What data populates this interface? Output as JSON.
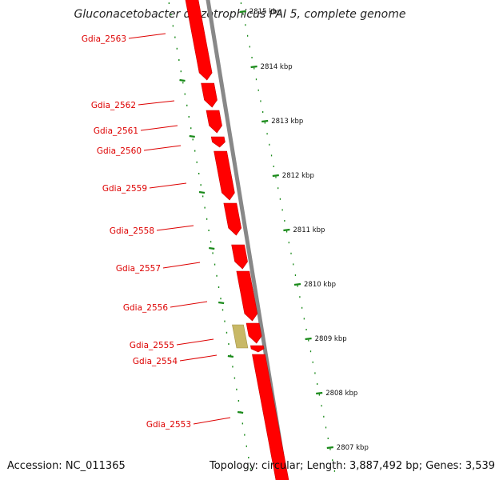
{
  "title": "Gluconacetobacter diazotrophicus PAI 5, complete genome",
  "footer": {
    "accession": "Accession: NC_011365",
    "summary": "Topology: circular; Length: 3,887,492 bp; Genes: 3,539"
  },
  "colors": {
    "gene": "#ff0000",
    "gene_dark": "#cc0000",
    "gene_other": "#c8b866",
    "backbone": "#888888",
    "ticks": "#1a8a1a",
    "label": "#dd0000"
  },
  "genes": [
    {
      "label": "Gdia_2563"
    },
    {
      "label": "Gdia_2562"
    },
    {
      "label": "Gdia_2561"
    },
    {
      "label": "Gdia_2560"
    },
    {
      "label": "Gdia_2559"
    },
    {
      "label": "Gdia_2558"
    },
    {
      "label": "Gdia_2557"
    },
    {
      "label": "Gdia_2556"
    },
    {
      "label": "Gdia_2555"
    },
    {
      "label": "Gdia_2554"
    },
    {
      "label": "Gdia_2553"
    }
  ],
  "scale_labels": [
    "2815 kbp",
    "2814 kbp",
    "2813 kbp",
    "2812 kbp",
    "2811 kbp",
    "2810 kbp",
    "2809 kbp",
    "2808 kbp",
    "2807 kbp"
  ]
}
